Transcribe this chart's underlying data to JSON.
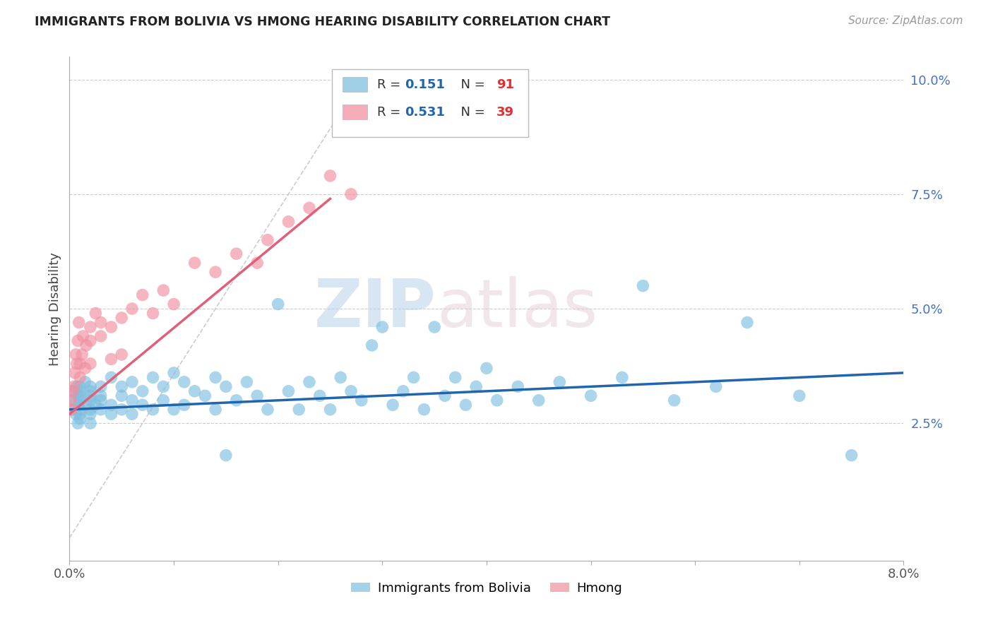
{
  "title": "IMMIGRANTS FROM BOLIVIA VS HMONG HEARING DISABILITY CORRELATION CHART",
  "source": "Source: ZipAtlas.com",
  "ylabel": "Hearing Disability",
  "xlim": [
    0.0,
    0.08
  ],
  "ylim": [
    -0.005,
    0.105
  ],
  "yticks_right": [
    0.025,
    0.05,
    0.075,
    0.1
  ],
  "yticklabels_right": [
    "2.5%",
    "5.0%",
    "7.5%",
    "10.0%"
  ],
  "bolivia_color": "#7fbfdf",
  "hmong_color": "#f090a0",
  "blue_line_color": "#2166ac",
  "pink_line_color": "#e0607a",
  "R_bolivia": 0.151,
  "N_bolivia": 91,
  "R_hmong": 0.531,
  "N_hmong": 39,
  "bolivia_x": [
    0.0002,
    0.0003,
    0.0005,
    0.0006,
    0.0007,
    0.0008,
    0.0008,
    0.0009,
    0.001,
    0.001,
    0.001,
    0.001,
    0.001,
    0.001,
    0.001,
    0.0015,
    0.0015,
    0.002,
    0.002,
    0.002,
    0.002,
    0.002,
    0.002,
    0.002,
    0.0025,
    0.003,
    0.003,
    0.003,
    0.003,
    0.004,
    0.004,
    0.004,
    0.005,
    0.005,
    0.005,
    0.006,
    0.006,
    0.006,
    0.007,
    0.007,
    0.008,
    0.008,
    0.009,
    0.009,
    0.01,
    0.01,
    0.011,
    0.011,
    0.012,
    0.013,
    0.014,
    0.014,
    0.015,
    0.015,
    0.016,
    0.017,
    0.018,
    0.019,
    0.02,
    0.021,
    0.022,
    0.023,
    0.024,
    0.025,
    0.026,
    0.027,
    0.028,
    0.029,
    0.03,
    0.031,
    0.032,
    0.033,
    0.034,
    0.035,
    0.036,
    0.037,
    0.038,
    0.039,
    0.04,
    0.041,
    0.043,
    0.045,
    0.047,
    0.05,
    0.053,
    0.055,
    0.058,
    0.062,
    0.065,
    0.07,
    0.075
  ],
  "bolivia_y": [
    0.028,
    0.032,
    0.03,
    0.027,
    0.033,
    0.031,
    0.025,
    0.029,
    0.028,
    0.03,
    0.032,
    0.026,
    0.033,
    0.027,
    0.031,
    0.029,
    0.034,
    0.028,
    0.031,
    0.03,
    0.027,
    0.033,
    0.025,
    0.032,
    0.029,
    0.031,
    0.028,
    0.033,
    0.03,
    0.035,
    0.029,
    0.027,
    0.033,
    0.031,
    0.028,
    0.034,
    0.03,
    0.027,
    0.032,
    0.029,
    0.035,
    0.028,
    0.033,
    0.03,
    0.036,
    0.028,
    0.034,
    0.029,
    0.032,
    0.031,
    0.035,
    0.028,
    0.033,
    0.018,
    0.03,
    0.034,
    0.031,
    0.028,
    0.051,
    0.032,
    0.028,
    0.034,
    0.031,
    0.028,
    0.035,
    0.032,
    0.03,
    0.042,
    0.046,
    0.029,
    0.032,
    0.035,
    0.028,
    0.046,
    0.031,
    0.035,
    0.029,
    0.033,
    0.037,
    0.03,
    0.033,
    0.03,
    0.034,
    0.031,
    0.035,
    0.055,
    0.03,
    0.033,
    0.047,
    0.031,
    0.018
  ],
  "hmong_x": [
    0.0001,
    0.0002,
    0.0003,
    0.0004,
    0.0005,
    0.0006,
    0.0007,
    0.0008,
    0.0009,
    0.001,
    0.001,
    0.0012,
    0.0013,
    0.0015,
    0.0016,
    0.002,
    0.002,
    0.002,
    0.0025,
    0.003,
    0.003,
    0.004,
    0.004,
    0.005,
    0.005,
    0.006,
    0.007,
    0.008,
    0.009,
    0.01,
    0.012,
    0.014,
    0.016,
    0.018,
    0.019,
    0.021,
    0.023,
    0.025,
    0.027
  ],
  "hmong_y": [
    0.03,
    0.028,
    0.032,
    0.033,
    0.036,
    0.04,
    0.038,
    0.043,
    0.047,
    0.035,
    0.038,
    0.04,
    0.044,
    0.037,
    0.042,
    0.043,
    0.046,
    0.038,
    0.049,
    0.044,
    0.047,
    0.046,
    0.039,
    0.048,
    0.04,
    0.05,
    0.053,
    0.049,
    0.054,
    0.051,
    0.06,
    0.058,
    0.062,
    0.06,
    0.065,
    0.069,
    0.072,
    0.079,
    0.075
  ],
  "bolivia_line_x": [
    0.0,
    0.08
  ],
  "bolivia_line_y": [
    0.028,
    0.036
  ],
  "hmong_line_x": [
    0.0,
    0.025
  ],
  "hmong_line_y": [
    0.027,
    0.074
  ]
}
